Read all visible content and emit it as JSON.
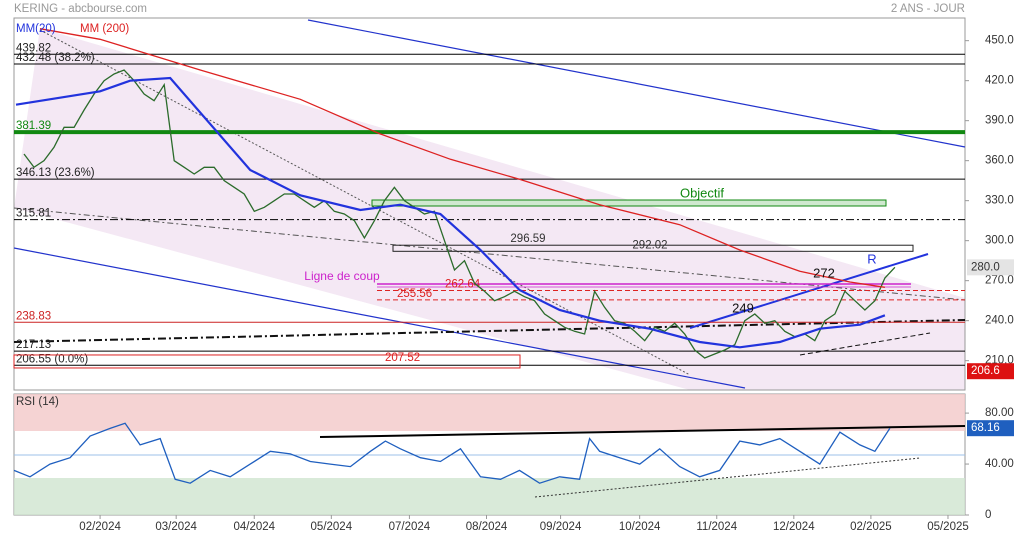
{
  "chart_data": [
    {
      "type": "line",
      "title": "KERING - abcbourse.com",
      "subtitle": "2 ANS - JOUR",
      "xlim": [
        0,
        95
      ],
      "ylim": [
        188,
        467
      ],
      "yticks": [
        {
          "value": 450,
          "label": "450.0"
        },
        {
          "value": 420,
          "label": "420.0"
        },
        {
          "value": 390,
          "label": "390.0"
        },
        {
          "value": 360,
          "label": "360.0"
        },
        {
          "value": 330,
          "label": "330.0"
        },
        {
          "value": 300,
          "label": "300.0"
        },
        {
          "value": 270,
          "label": "270.0"
        },
        {
          "value": 240,
          "label": "240.0"
        },
        {
          "value": 210,
          "label": "210.0"
        }
      ],
      "series": [
        {
          "color": "#2b6b2b",
          "x": [
            1,
            2,
            3,
            4,
            5,
            6,
            7,
            8,
            9,
            10,
            11,
            12,
            13,
            14,
            15,
            16,
            17,
            18,
            19,
            20,
            21,
            22,
            23,
            24,
            25,
            26,
            27,
            28,
            29,
            30,
            31,
            32,
            33,
            34,
            35,
            36,
            37,
            38,
            39,
            40,
            41,
            42,
            43,
            44,
            45,
            46,
            47,
            48,
            49,
            50,
            51,
            52,
            53,
            54,
            55,
            56,
            57,
            58,
            59,
            60,
            61,
            62,
            63,
            64,
            65,
            66,
            67,
            68,
            69,
            70,
            71,
            72,
            73,
            74,
            75,
            76,
            77,
            78,
            79,
            80,
            81,
            82,
            83,
            84,
            85,
            86,
            87,
            88
          ],
          "values": [
            365,
            355,
            360,
            370,
            385,
            385,
            398,
            410,
            420,
            425,
            428,
            420,
            410,
            405,
            417,
            360,
            355,
            350,
            355,
            355,
            345,
            340,
            335,
            322,
            325,
            330,
            335,
            335,
            330,
            325,
            330,
            322,
            320,
            315,
            302,
            315,
            330,
            340,
            330,
            325,
            320,
            322,
            300,
            278,
            285,
            268,
            262,
            255,
            258,
            262,
            258,
            255,
            245,
            240,
            235,
            232,
            230,
            262,
            250,
            240,
            238,
            232,
            225,
            235,
            232,
            238,
            230,
            218,
            212,
            215,
            218,
            222,
            240,
            245,
            238,
            240,
            232,
            228,
            230,
            225,
            240,
            245,
            262,
            255,
            248,
            255,
            272,
            280
          ]
        },
        {
          "name": "MM(20)",
          "color": "#2233dd",
          "x": [
            0.2,
            8.6,
            11.6,
            15.6,
            23.6,
            28.6,
            34.6,
            38.6,
            42.6,
            46.6,
            50.5,
            54.5,
            58.5,
            63.5,
            68.5,
            72.5,
            76.5,
            80.5,
            84.5,
            87
          ],
          "values": [
            402,
            412,
            420,
            422,
            353,
            334,
            323,
            327,
            320,
            293,
            263,
            248,
            240,
            234,
            224,
            220,
            224,
            234,
            237,
            244
          ]
        },
        {
          "name": "MM (200)",
          "color": "#dd2222",
          "x": [
            2.6,
            8.6,
            18.6,
            28.6,
            36.6,
            43.6,
            50.5,
            58.5,
            66.5,
            72.5,
            78.5,
            83.5,
            87
          ],
          "values": [
            459,
            451,
            428,
            406,
            380,
            361,
            346,
            327,
            312,
            293,
            277,
            269,
            265
          ]
        }
      ],
      "levels": [
        {
          "value": 439.82,
          "color": "#000000",
          "style": "solid"
        },
        {
          "value": 432.48,
          "label": "432.48 (38.2%)",
          "color": "#000000",
          "style": "solid"
        },
        {
          "value": 381.39,
          "label": "381.39",
          "color": "#118811",
          "style": "thick"
        },
        {
          "value": 346.13,
          "label": "346.13 (23.6%)",
          "color": "#000000",
          "style": "solid"
        },
        {
          "value": 315.81,
          "color": "#000000",
          "style": "dashdot"
        },
        {
          "value": 262.64,
          "color": "#dd2222",
          "style": "dashed"
        },
        {
          "value": 255.56,
          "color": "#dd2222",
          "style": "dashed"
        },
        {
          "value": 238.83,
          "color": "#cc2222",
          "style": "solid"
        },
        {
          "value": 217.13,
          "color": "#000000",
          "style": "solid"
        },
        {
          "value": 206.55,
          "label": "206.55 (0.0%)",
          "color": "#000000",
          "style": "solid"
        },
        {
          "value": 207.52,
          "color": "#dd2222",
          "style": "none"
        }
      ],
      "zone": [
        296.59,
        292.02
      ],
      "annotations": [
        "Objectif",
        "Ligne de coup",
        272,
        249,
        "R"
      ],
      "last_price": {
        "value": 280,
        "label": "280.0"
      },
      "low_marker": 206.6
    },
    {
      "type": "line",
      "title": "RSI (14)",
      "xlim": [
        0,
        95
      ],
      "ylim": [
        0,
        95
      ],
      "yticks": [
        0,
        {
          "value": 40,
          "label": "40.00"
        },
        {
          "value": 80,
          "label": "80.00"
        }
      ],
      "xticks": [
        {
          "value": 8.6,
          "label": "02/2024"
        },
        {
          "value": 16.2,
          "label": "03/2024"
        },
        {
          "value": 24,
          "label": "04/2024"
        },
        {
          "value": 31.7,
          "label": "05/2024"
        },
        {
          "value": 39.5,
          "label": "07/2024"
        },
        {
          "value": 47.2,
          "label": "08/2024"
        },
        {
          "value": 54.6,
          "label": "09/2024"
        },
        {
          "value": 62.5,
          "label": "10/2024"
        },
        {
          "value": 70.2,
          "label": "11/2024"
        },
        {
          "value": 77.9,
          "label": "12/2024"
        },
        {
          "value": 85.6,
          "label": "02/2025"
        },
        {
          "value": 93.3,
          "label": "05/2025"
        }
      ],
      "series": [
        {
          "color": "#1f5fbf",
          "x": [
            0,
            1.6,
            3.6,
            5.6,
            7.6,
            9.6,
            11.1,
            12.6,
            14.6,
            16.1,
            17.6,
            19.6,
            21.6,
            23.6,
            25.6,
            27.6,
            29.6,
            31.6,
            33.6,
            35.6,
            37.1,
            38.6,
            40.6,
            42.6,
            44.6,
            46.6,
            48.6,
            50.5,
            52.5,
            54.5,
            56.5,
            57.5,
            58.5,
            60.5,
            62.5,
            64.5,
            66.5,
            68.5,
            70.5,
            72.5,
            74.5,
            76.5,
            78.5,
            80.5,
            82.5,
            84.5,
            86,
            87.5
          ],
          "values": [
            35,
            30,
            40,
            45,
            62,
            68,
            72,
            55,
            60,
            28,
            25,
            35,
            30,
            40,
            50,
            48,
            42,
            40,
            38,
            50,
            58,
            52,
            45,
            42,
            52,
            30,
            28,
            35,
            25,
            30,
            28,
            60,
            50,
            45,
            40,
            52,
            38,
            30,
            35,
            58,
            55,
            60,
            50,
            40,
            65,
            55,
            50,
            68.16
          ]
        }
      ]
    }
  ]
}
